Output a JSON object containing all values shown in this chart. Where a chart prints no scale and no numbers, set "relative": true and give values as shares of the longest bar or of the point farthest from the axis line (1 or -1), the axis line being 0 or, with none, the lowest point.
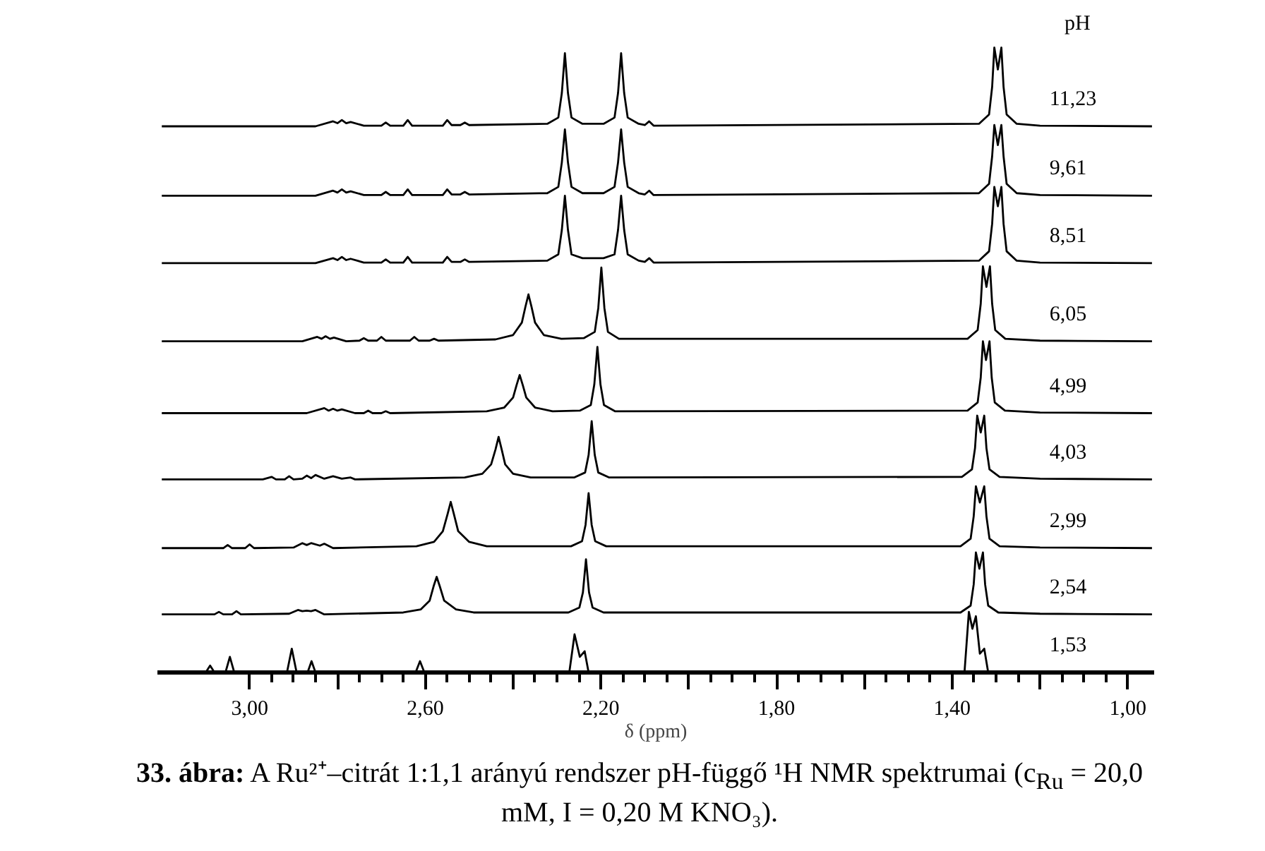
{
  "chart_data": {
    "type": "line",
    "relative": true,
    "xlabel": "δ (ppm)",
    "legend_title": "pH",
    "xlim": [
      3.21,
      0.94
    ],
    "xticks": [
      {
        "value": 3.0,
        "label": "3,00"
      },
      {
        "value": 2.8,
        "label": null
      },
      {
        "value": 2.6,
        "label": "2,60"
      },
      {
        "value": 2.4,
        "label": null
      },
      {
        "value": 2.2,
        "label": "2,20"
      },
      {
        "value": 2.0,
        "label": null
      },
      {
        "value": 1.8,
        "label": "1,80"
      },
      {
        "value": 1.6,
        "label": null
      },
      {
        "value": 1.4,
        "label": "1,40"
      },
      {
        "value": 1.2,
        "label": null
      },
      {
        "value": 1.0,
        "label": "1,00"
      }
    ],
    "annotations": [
      "33. ábra: A Ru²⁺–citrát 1:1,1 arányú rendszer pH-függő ¹H NMR spektrumai (c$_{Ru}$ = 20,0 mM, I = 0,20 M KNO₃)."
    ],
    "series": [
      {
        "name": "11,23",
        "color": "#000000",
        "x": [
          3.2,
          2.85,
          2.81,
          2.8,
          2.79,
          2.78,
          2.77,
          2.74,
          2.7,
          2.69,
          2.68,
          2.65,
          2.64,
          2.63,
          2.56,
          2.55,
          2.54,
          2.52,
          2.51,
          2.5,
          2.322,
          2.297,
          2.289,
          2.282,
          2.275,
          2.267,
          2.242,
          2.194,
          2.169,
          2.161,
          2.154,
          2.147,
          2.139,
          2.114,
          2.1,
          2.09,
          2.08,
          1.339,
          1.316,
          1.309,
          1.304,
          1.296,
          1.288,
          1.283,
          1.276,
          1.253,
          1.2,
          0.945
        ],
        "values": [
          0.874,
          0.874,
          0.882,
          0.879,
          0.884,
          0.879,
          0.881,
          0.875,
          0.875,
          0.88,
          0.875,
          0.875,
          0.884,
          0.875,
          0.875,
          0.884,
          0.876,
          0.876,
          0.88,
          0.876,
          0.878,
          0.888,
          0.927,
          0.991,
          0.927,
          0.888,
          0.878,
          0.878,
          0.888,
          0.927,
          0.991,
          0.927,
          0.888,
          0.878,
          0.876,
          0.882,
          0.875,
          0.878,
          0.893,
          0.937,
          1.0,
          0.965,
          1.0,
          0.937,
          0.893,
          0.878,
          0.875,
          0.874
        ]
      },
      {
        "name": "9,61",
        "color": "#000000",
        "x": [
          3.2,
          2.85,
          2.81,
          2.8,
          2.79,
          2.78,
          2.77,
          2.74,
          2.7,
          2.69,
          2.68,
          2.65,
          2.64,
          2.63,
          2.56,
          2.55,
          2.54,
          2.52,
          2.51,
          2.5,
          2.322,
          2.297,
          2.289,
          2.282,
          2.275,
          2.267,
          2.242,
          2.194,
          2.169,
          2.161,
          2.154,
          2.147,
          2.139,
          2.114,
          2.1,
          2.09,
          2.08,
          1.339,
          1.316,
          1.309,
          1.304,
          1.296,
          1.288,
          1.283,
          1.276,
          1.253,
          1.2,
          0.945
        ],
        "values": [
          0.763,
          0.763,
          0.771,
          0.768,
          0.773,
          0.768,
          0.77,
          0.764,
          0.764,
          0.769,
          0.764,
          0.764,
          0.773,
          0.764,
          0.764,
          0.773,
          0.765,
          0.765,
          0.769,
          0.765,
          0.767,
          0.777,
          0.816,
          0.869,
          0.816,
          0.777,
          0.767,
          0.767,
          0.777,
          0.816,
          0.869,
          0.816,
          0.777,
          0.767,
          0.765,
          0.771,
          0.764,
          0.767,
          0.782,
          0.826,
          0.876,
          0.844,
          0.876,
          0.826,
          0.782,
          0.767,
          0.764,
          0.763
        ]
      },
      {
        "name": "8,51",
        "color": "#000000",
        "x": [
          3.2,
          2.85,
          2.81,
          2.8,
          2.79,
          2.78,
          2.77,
          2.74,
          2.7,
          2.69,
          2.68,
          2.65,
          2.64,
          2.63,
          2.56,
          2.55,
          2.54,
          2.52,
          2.51,
          2.5,
          2.322,
          2.297,
          2.289,
          2.282,
          2.275,
          2.267,
          2.242,
          2.194,
          2.169,
          2.161,
          2.154,
          2.147,
          2.139,
          2.114,
          2.1,
          2.09,
          2.08,
          1.339,
          1.316,
          1.309,
          1.304,
          1.296,
          1.288,
          1.283,
          1.276,
          1.253,
          1.2,
          0.945
        ],
        "values": [
          0.655,
          0.655,
          0.663,
          0.66,
          0.665,
          0.66,
          0.662,
          0.656,
          0.656,
          0.661,
          0.656,
          0.656,
          0.665,
          0.656,
          0.656,
          0.665,
          0.657,
          0.657,
          0.661,
          0.657,
          0.659,
          0.669,
          0.708,
          0.763,
          0.708,
          0.669,
          0.663,
          0.663,
          0.669,
          0.708,
          0.763,
          0.708,
          0.669,
          0.659,
          0.657,
          0.663,
          0.656,
          0.659,
          0.674,
          0.718,
          0.777,
          0.746,
          0.777,
          0.718,
          0.674,
          0.659,
          0.656,
          0.655
        ]
      },
      {
        "name": "6,05",
        "color": "#000000",
        "x": [
          3.2,
          2.88,
          2.846,
          2.836,
          2.827,
          2.817,
          2.808,
          2.78,
          2.75,
          2.74,
          2.73,
          2.71,
          2.7,
          2.69,
          2.635,
          2.625,
          2.615,
          2.59,
          2.58,
          2.57,
          2.44,
          2.4,
          2.38,
          2.372,
          2.365,
          2.358,
          2.35,
          2.33,
          2.29,
          2.239,
          2.214,
          2.206,
          2.199,
          2.192,
          2.184,
          2.159,
          1.365,
          1.342,
          1.335,
          1.33,
          1.322,
          1.314,
          1.309,
          1.302,
          1.279,
          1.2,
          0.945
        ],
        "values": [
          0.53,
          0.53,
          0.537,
          0.534,
          0.538,
          0.534,
          0.536,
          0.53,
          0.531,
          0.535,
          0.531,
          0.531,
          0.537,
          0.531,
          0.531,
          0.537,
          0.531,
          0.531,
          0.534,
          0.531,
          0.533,
          0.54,
          0.56,
          0.585,
          0.605,
          0.585,
          0.56,
          0.54,
          0.534,
          0.535,
          0.545,
          0.583,
          0.648,
          0.583,
          0.545,
          0.534,
          0.534,
          0.548,
          0.59,
          0.65,
          0.617,
          0.65,
          0.59,
          0.548,
          0.534,
          0.531,
          0.53
        ]
      },
      {
        "name": "4,99",
        "color": "#000000",
        "x": [
          3.2,
          2.87,
          2.83,
          2.82,
          2.81,
          2.8,
          2.79,
          2.76,
          2.74,
          2.73,
          2.72,
          2.7,
          2.69,
          2.68,
          2.46,
          2.42,
          2.4,
          2.392,
          2.385,
          2.378,
          2.37,
          2.35,
          2.31,
          2.248,
          2.223,
          2.215,
          2.208,
          2.201,
          2.193,
          2.168,
          1.365,
          1.342,
          1.335,
          1.33,
          1.323,
          1.315,
          1.31,
          1.303,
          1.28,
          1.2,
          0.945
        ],
        "values": [
          0.415,
          0.415,
          0.423,
          0.419,
          0.422,
          0.419,
          0.421,
          0.415,
          0.415,
          0.419,
          0.415,
          0.415,
          0.418,
          0.415,
          0.418,
          0.424,
          0.44,
          0.46,
          0.476,
          0.46,
          0.44,
          0.424,
          0.418,
          0.419,
          0.428,
          0.461,
          0.521,
          0.461,
          0.428,
          0.418,
          0.419,
          0.432,
          0.472,
          0.53,
          0.5,
          0.53,
          0.472,
          0.432,
          0.419,
          0.416,
          0.415
        ]
      },
      {
        "name": "4,03",
        "color": "#000000",
        "x": [
          3.2,
          2.97,
          2.95,
          2.94,
          2.92,
          2.91,
          2.9,
          2.88,
          2.87,
          2.86,
          2.85,
          2.83,
          2.81,
          2.79,
          2.77,
          2.76,
          2.51,
          2.47,
          2.45,
          2.44,
          2.433,
          2.426,
          2.418,
          2.4,
          2.36,
          2.261,
          2.236,
          2.228,
          2.221,
          2.214,
          2.206,
          2.181,
          1.378,
          1.355,
          1.348,
          1.343,
          1.335,
          1.327,
          1.322,
          1.315,
          1.292,
          1.2,
          0.945
        ],
        "values": [
          0.309,
          0.309,
          0.313,
          0.309,
          0.309,
          0.314,
          0.309,
          0.31,
          0.315,
          0.311,
          0.316,
          0.31,
          0.314,
          0.31,
          0.312,
          0.309,
          0.312,
          0.318,
          0.333,
          0.357,
          0.377,
          0.357,
          0.333,
          0.318,
          0.312,
          0.312,
          0.32,
          0.348,
          0.402,
          0.348,
          0.32,
          0.312,
          0.313,
          0.325,
          0.359,
          0.411,
          0.384,
          0.411,
          0.359,
          0.325,
          0.313,
          0.31,
          0.309
        ]
      },
      {
        "name": "2,99",
        "color": "#000000",
        "x": [
          3.2,
          3.06,
          3.05,
          3.04,
          3.01,
          3.0,
          2.99,
          2.9,
          2.88,
          2.87,
          2.86,
          2.84,
          2.83,
          2.81,
          2.62,
          2.58,
          2.56,
          2.549,
          2.542,
          2.535,
          2.525,
          2.5,
          2.46,
          2.268,
          2.243,
          2.235,
          2.228,
          2.221,
          2.213,
          2.188,
          1.381,
          1.358,
          1.351,
          1.346,
          1.337,
          1.327,
          1.322,
          1.315,
          1.292,
          1.2,
          0.945
        ],
        "values": [
          0.199,
          0.199,
          0.204,
          0.199,
          0.199,
          0.205,
          0.199,
          0.2,
          0.207,
          0.204,
          0.207,
          0.203,
          0.206,
          0.199,
          0.202,
          0.209,
          0.226,
          0.254,
          0.273,
          0.254,
          0.226,
          0.209,
          0.202,
          0.202,
          0.21,
          0.236,
          0.287,
          0.236,
          0.21,
          0.202,
          0.202,
          0.214,
          0.25,
          0.298,
          0.272,
          0.298,
          0.25,
          0.214,
          0.202,
          0.2,
          0.199
        ]
      },
      {
        "name": "2,54",
        "color": "#000000",
        "x": [
          3.2,
          3.08,
          3.07,
          3.06,
          3.04,
          3.03,
          3.02,
          2.91,
          2.89,
          2.88,
          2.87,
          2.86,
          2.85,
          2.83,
          2.65,
          2.61,
          2.59,
          2.581,
          2.574,
          2.567,
          2.557,
          2.53,
          2.49,
          2.274,
          2.249,
          2.241,
          2.234,
          2.227,
          2.219,
          2.194,
          1.381,
          1.358,
          1.351,
          1.346,
          1.338,
          1.33,
          1.325,
          1.318,
          1.295,
          1.2,
          0.945
        ],
        "values": [
          0.093,
          0.093,
          0.097,
          0.093,
          0.093,
          0.098,
          0.093,
          0.094,
          0.1,
          0.098,
          0.099,
          0.098,
          0.1,
          0.093,
          0.096,
          0.101,
          0.115,
          0.138,
          0.153,
          0.138,
          0.115,
          0.101,
          0.096,
          0.096,
          0.104,
          0.128,
          0.181,
          0.128,
          0.104,
          0.096,
          0.096,
          0.107,
          0.141,
          0.192,
          0.166,
          0.192,
          0.141,
          0.107,
          0.096,
          0.094,
          0.093
        ]
      },
      {
        "name": "1,53",
        "color": "#000000",
        "x": [
          3.2,
          3.1,
          3.09,
          3.08,
          3.055,
          3.045,
          3.035,
          2.915,
          2.904,
          2.893,
          2.868,
          2.859,
          2.85,
          2.622,
          2.612,
          2.602,
          2.272,
          2.26,
          2.248,
          2.237,
          2.228,
          1.372,
          1.362,
          1.354,
          1.346,
          1.337,
          1.327,
          1.318,
          0.945
        ],
        "values": [
          0,
          0,
          0.011,
          0,
          0,
          0.025,
          0,
          0,
          0.038,
          0,
          0,
          0.018,
          0,
          0,
          0.018,
          0,
          0,
          0.061,
          0.025,
          0.034,
          0,
          0,
          0.097,
          0.07,
          0.09,
          0.03,
          0.038,
          0,
          0
        ]
      }
    ]
  }
}
